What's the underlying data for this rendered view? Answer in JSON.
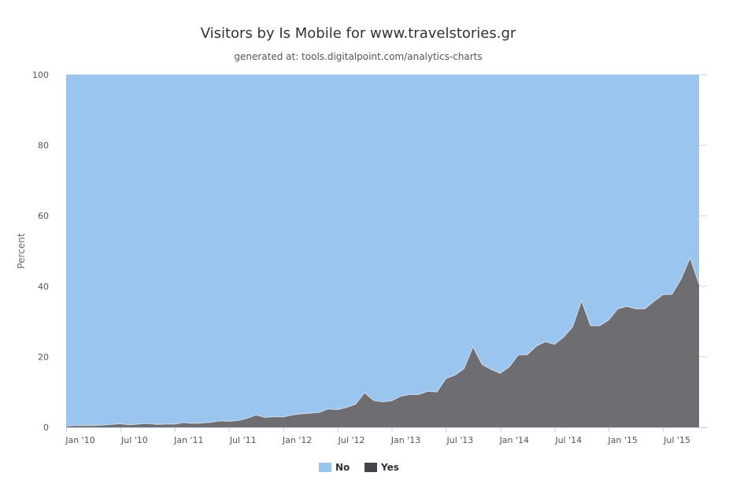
{
  "chart_data": {
    "type": "area",
    "stacking": "percent",
    "title": "Visitors by Is Mobile for www.travelstories.gr",
    "subtitle": "generated at: tools.digitalpoint.com/analytics-charts",
    "ylabel": "Percent",
    "xlabel": "",
    "ylim": [
      0,
      100
    ],
    "yticks": [
      0,
      20,
      40,
      60,
      80,
      100
    ],
    "x_start": "Jan '10",
    "x_step": "month",
    "x_tick_labels": [
      "Jan '10",
      "Jul '10",
      "Jan '11",
      "Jul '11",
      "Jan '12",
      "Jul '12",
      "Jan '13",
      "Jul '13",
      "Jan '14",
      "Jul '14",
      "Jan '15",
      "Jul '15"
    ],
    "grid": true,
    "legend": "bottom-center",
    "series": [
      {
        "name": "No",
        "color": "#9ac5ef",
        "fill": "remainder-to-100"
      },
      {
        "name": "Yes",
        "color": "#6e6e72",
        "values": [
          0.3,
          0.5,
          0.5,
          0.5,
          0.6,
          0.8,
          1.0,
          0.7,
          0.9,
          1.1,
          0.8,
          0.9,
          0.9,
          1.3,
          1.1,
          1.2,
          1.4,
          1.8,
          1.7,
          1.9,
          2.5,
          3.5,
          2.8,
          3.0,
          2.9,
          3.5,
          3.8,
          4.0,
          4.2,
          5.2,
          5.0,
          5.6,
          6.5,
          9.8,
          7.6,
          7.2,
          7.5,
          8.8,
          9.3,
          9.3,
          10.2,
          10.0,
          13.8,
          14.8,
          16.6,
          22.8,
          17.8,
          16.4,
          15.3,
          17.1,
          20.5,
          20.6,
          23.0,
          24.3,
          23.5,
          25.5,
          28.4,
          35.8,
          28.8,
          28.8,
          30.4,
          33.6,
          34.3,
          33.6,
          33.6,
          35.7,
          37.6,
          37.7,
          42.0,
          48.0,
          40.6
        ]
      }
    ]
  }
}
